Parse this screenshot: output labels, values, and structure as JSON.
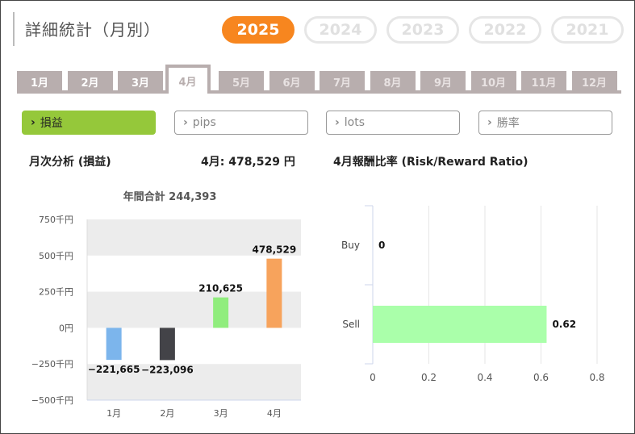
{
  "header": {
    "title": "詳細統計（月別）"
  },
  "years": [
    {
      "label": "2025",
      "active": true
    },
    {
      "label": "2024",
      "active": false
    },
    {
      "label": "2023",
      "active": false
    },
    {
      "label": "2022",
      "active": false
    },
    {
      "label": "2021",
      "active": false
    }
  ],
  "months": [
    {
      "label": "1月",
      "state": "past"
    },
    {
      "label": "2月",
      "state": "past"
    },
    {
      "label": "3月",
      "state": "past"
    },
    {
      "label": "4月",
      "state": "active"
    },
    {
      "label": "5月",
      "state": "future"
    },
    {
      "label": "6月",
      "state": "future"
    },
    {
      "label": "7月",
      "state": "future"
    },
    {
      "label": "8月",
      "state": "future"
    },
    {
      "label": "9月",
      "state": "future"
    },
    {
      "label": "10月",
      "state": "future"
    },
    {
      "label": "11月",
      "state": "future"
    },
    {
      "label": "12月",
      "state": "future"
    }
  ],
  "metrics": [
    {
      "label": "損益",
      "active": true
    },
    {
      "label": "pips",
      "active": false
    },
    {
      "label": "lots",
      "active": false
    },
    {
      "label": "勝率",
      "active": false
    }
  ],
  "monthly_section": {
    "heading": "月次分析 (損益)",
    "month_value": "4月:  478,529 円"
  },
  "ratio_section": {
    "heading": "4月報酬比率 (Risk/Reward Ratio)"
  },
  "colors": {
    "accent_orange": "#f7861f",
    "accent_green": "#95c83a",
    "tab_gray": "#b8aeae"
  },
  "chart_data": [
    {
      "type": "bar",
      "title": "年間合計 244,393",
      "categories": [
        "1月",
        "2月",
        "3月",
        "4月"
      ],
      "values": [
        -221665,
        -223096,
        210625,
        478529
      ],
      "data_labels": [
        "−221,665",
        "−223,096",
        "210,625",
        "478,529"
      ],
      "bar_colors": [
        "#7cb5ec",
        "#434348",
        "#90ed7d",
        "#f7a35c"
      ],
      "ylim": [
        -500000,
        750000
      ],
      "y_ticks": [
        750000,
        500000,
        250000,
        0,
        -250000,
        -500000
      ],
      "y_tick_labels": [
        "750千円",
        "500千円",
        "250千円",
        "0円",
        "−250千円",
        "−500千円"
      ],
      "xlabel": "",
      "ylabel": "",
      "grid": "alternating bands"
    },
    {
      "type": "bar",
      "orientation": "horizontal",
      "title": "",
      "categories": [
        "Buy",
        "Sell"
      ],
      "values": [
        0,
        0.62
      ],
      "data_labels": [
        "0",
        "0.62"
      ],
      "bar_color": "#aaffaa",
      "xlim": [
        0,
        0.8
      ],
      "x_ticks": [
        0,
        0.2,
        0.4,
        0.6,
        0.8
      ],
      "x_tick_labels": [
        "0",
        "0.2",
        "0.4",
        "0.6",
        "0.8"
      ],
      "grid": "vertical lines"
    }
  ]
}
